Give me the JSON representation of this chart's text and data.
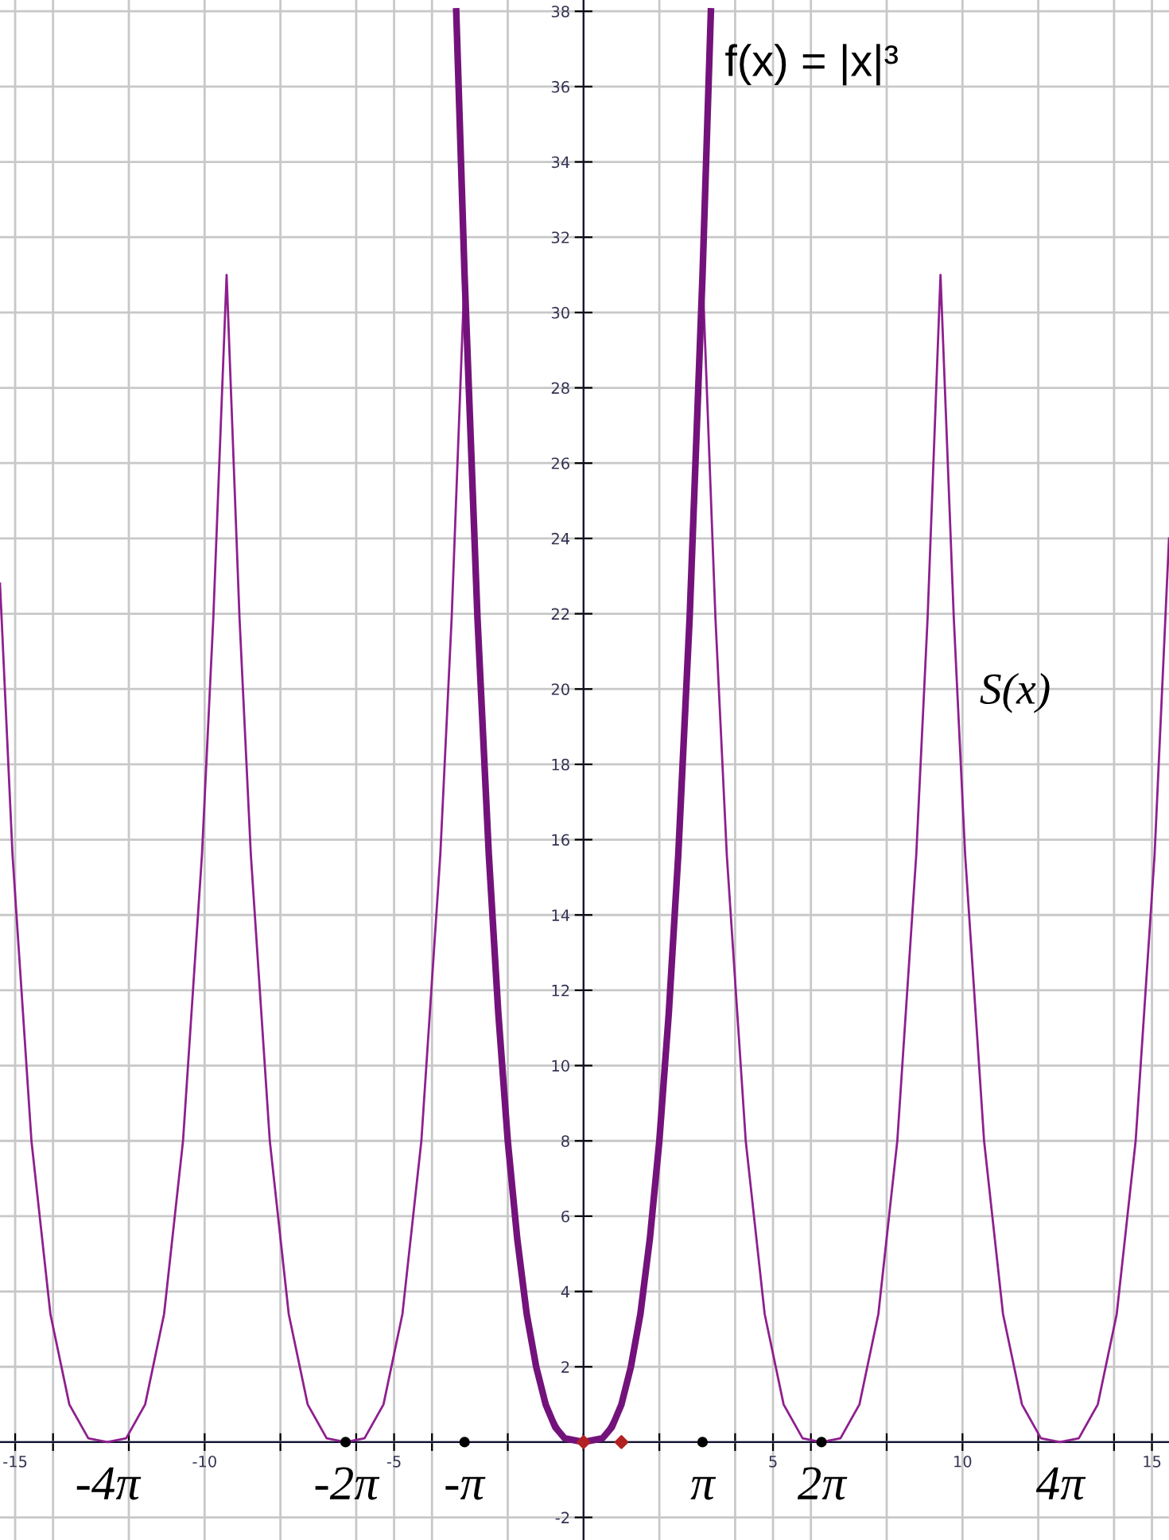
{
  "chart_data": {
    "type": "line",
    "xlim": [
      -15.4,
      15.45
    ],
    "ylim": [
      -2.6,
      38.3
    ],
    "xticks": [
      {
        "value": -15,
        "label": "-15"
      },
      {
        "value": -14,
        "label": null
      },
      {
        "value": -12,
        "label": null
      },
      {
        "value": -10,
        "label": "-10"
      },
      {
        "value": -8,
        "label": null
      },
      {
        "value": -6,
        "label": null
      },
      {
        "value": -5,
        "label": "-5"
      },
      {
        "value": -4,
        "label": null
      },
      {
        "value": -2,
        "label": null
      },
      {
        "value": 0,
        "label": null
      },
      {
        "value": 2,
        "label": null
      },
      {
        "value": 4,
        "label": null
      },
      5,
      {
        "value": 6,
        "label": null
      },
      {
        "value": 8,
        "label": null
      },
      10,
      {
        "value": 12,
        "label": null
      },
      {
        "value": 14,
        "label": null
      },
      15
    ],
    "yticks": [
      {
        "value": -2,
        "label": "-2"
      },
      {
        "value": 0,
        "label": null
      },
      2,
      4,
      6,
      8,
      10,
      12,
      14,
      16,
      18,
      20,
      22,
      24,
      26,
      28,
      30,
      32,
      34,
      36,
      38
    ],
    "grid": true,
    "series": [
      {
        "color": "#8e1f8e",
        "x": [
          -15.4,
          -15.07,
          -14.57,
          -14.07,
          -13.57,
          -13.07,
          -12.57,
          -12.07,
          -11.57,
          -11.07,
          -10.57,
          -10.07,
          -9.77,
          -9.42,
          -9.08,
          -8.78,
          -8.28,
          -7.78,
          -7.28,
          -6.78,
          -6.28,
          -5.78,
          -5.28,
          -4.78,
          -4.28,
          -3.78,
          -3.48,
          -3.14,
          -2.8,
          -2.5,
          -2,
          -1.5,
          -1,
          -0.5,
          0,
          0.5,
          1,
          1.5,
          2,
          2.5,
          2.8,
          3.14,
          3.48,
          3.78,
          4.28,
          4.78,
          5.28,
          5.78,
          6.28,
          6.78,
          7.28,
          7.78,
          8.28,
          8.78,
          9.08,
          9.42,
          9.77,
          10.07,
          10.57,
          11.07,
          11.57,
          12.07,
          12.57,
          13.07,
          13.57,
          14.07,
          14.57,
          15.07,
          15.45
        ],
        "values": [
          22.8,
          15.6,
          8,
          3.4,
          1,
          0.1,
          0,
          0.1,
          1,
          3.4,
          8,
          15.6,
          21.9,
          31.0,
          21.9,
          15.6,
          8,
          3.4,
          1,
          0.1,
          0,
          0.1,
          1,
          3.4,
          8,
          15.6,
          21.9,
          31.0,
          21.9,
          15.6,
          8,
          3.4,
          1,
          0.1,
          0,
          0.1,
          1,
          3.4,
          8,
          15.6,
          21.9,
          31.0,
          21.9,
          15.6,
          8,
          3.4,
          1,
          0.1,
          0,
          0.1,
          1,
          3.4,
          8,
          15.6,
          21.9,
          31.0,
          21.9,
          15.6,
          8,
          3.4,
          1,
          0.1,
          0,
          0.1,
          1,
          3.4,
          8,
          15.6,
          24.0
        ]
      },
      {
        "color": "#74127c",
        "x": [
          -3.36,
          -3.14,
          -2.8,
          -2.5,
          -2.25,
          -2,
          -1.75,
          -1.5,
          -1.25,
          -1,
          -0.75,
          -0.5,
          0,
          0.5,
          0.75,
          1,
          1.25,
          1.5,
          1.75,
          2,
          2.25,
          2.5,
          2.8,
          3.14,
          3.36
        ],
        "values": [
          38,
          31.0,
          21.9,
          15.6,
          11.4,
          8,
          5.4,
          3.4,
          2,
          1,
          0.4,
          0.1,
          0,
          0.1,
          0.4,
          1,
          2,
          3.4,
          5.4,
          8,
          11.4,
          15.6,
          21.9,
          31.0,
          38
        ]
      },
      {
        "type": "scatter",
        "color": "#000000",
        "marker": "circle",
        "x": [
          -6.28,
          -3.14,
          3.14,
          6.28
        ],
        "values": [
          0,
          0,
          0,
          0
        ]
      },
      {
        "type": "scatter",
        "color": "#b22222",
        "marker": "diamond",
        "x": [
          0,
          1
        ],
        "values": [
          0,
          0
        ]
      }
    ],
    "annotations": [
      "f(x) = |x|³",
      "S(x)",
      "-4π",
      "-2π",
      "-π",
      "π",
      "2π",
      "4π"
    ]
  }
}
